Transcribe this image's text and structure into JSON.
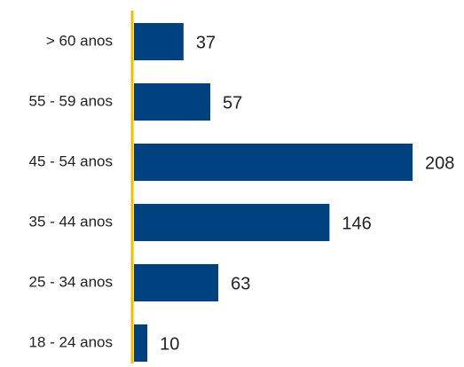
{
  "chart_data": {
    "type": "hbar",
    "categories": [
      "> 60 anos",
      "55 - 59 anos",
      "45 - 54 anos",
      "35 - 44 anos",
      "25 - 34 anos",
      "18 - 24 anos"
    ],
    "values": [
      37,
      57,
      208,
      146,
      63,
      10
    ],
    "color": "#00427f",
    "axis_color": "#f2bd00"
  }
}
